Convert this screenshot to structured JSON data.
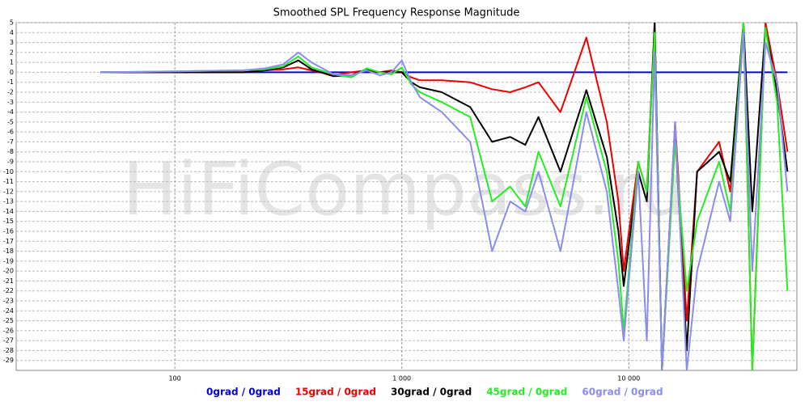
{
  "chart_data": {
    "type": "line",
    "title": "Smoothed SPL Frequency Response Magnitude",
    "watermark": "HiFiCompass.ru",
    "log_x": true,
    "grid": true,
    "xlim": [
      20,
      55000
    ],
    "xticks": [
      100,
      {
        "value": 1000,
        "label": "1 000"
      },
      {
        "value": 10000,
        "label": "10 000"
      }
    ],
    "ylim": [
      -30,
      5
    ],
    "yticks": [
      5,
      4,
      3,
      2,
      1,
      0,
      -1,
      -2,
      -3,
      -4,
      -5,
      -6,
      -7,
      -8,
      -9,
      -10,
      -11,
      -12,
      -13,
      -14,
      -15,
      -16,
      -17,
      -18,
      -19,
      -20,
      -21,
      -22,
      -23,
      -24,
      -25,
      -26,
      -27,
      -28,
      -29
    ],
    "x": [
      47,
      100,
      200,
      250,
      300,
      350,
      400,
      500,
      600,
      700,
      800,
      900,
      1000,
      1100,
      1200,
      1500,
      2000,
      2500,
      3000,
      3500,
      4000,
      5000,
      6500,
      8000,
      9000,
      9500,
      11000,
      12000,
      13000,
      14000,
      16000,
      18000,
      20000,
      25000,
      28000,
      32000,
      35000,
      40000,
      45000,
      50000
    ],
    "series": [
      {
        "name": "0grad / 0grad",
        "color": "#0000dd",
        "values": [
          0,
          0,
          0,
          0,
          0,
          0,
          0,
          0,
          0,
          0,
          0,
          0,
          0,
          0,
          0,
          0,
          0,
          0,
          0,
          0,
          0,
          0,
          0,
          0,
          0,
          0,
          0,
          0,
          0,
          0,
          0,
          0,
          0,
          0,
          0,
          0,
          0,
          0,
          0,
          0
        ]
      },
      {
        "name": "15grad / 0grad",
        "color": "#ee0000",
        "values": [
          0,
          0,
          0,
          0.2,
          0.3,
          0.5,
          0.2,
          -0.3,
          0,
          0.2,
          0,
          0.2,
          0,
          -0.5,
          -0.8,
          -0.8,
          -1,
          -1.7,
          -2,
          -1.5,
          -1,
          -4,
          3.5,
          -5,
          -13,
          -20,
          -9,
          -12,
          5,
          -30,
          -5,
          -25,
          -10,
          -7,
          -12,
          5,
          -30,
          5,
          -1,
          -8
        ]
      },
      {
        "name": "30grad / 0grad",
        "color": "#000000",
        "values": [
          0,
          0,
          0,
          0.2,
          0.5,
          1.2,
          0.3,
          -0.4,
          -0.3,
          0.3,
          0,
          0,
          0,
          -1,
          -1.5,
          -2,
          -3.5,
          -7,
          -6.5,
          -7.3,
          -4.5,
          -10,
          -1.8,
          -8.5,
          -16,
          -21.5,
          -10,
          -13,
          5,
          -30,
          -6,
          -28,
          -10,
          -8,
          -11,
          5,
          -14,
          4.5,
          -2,
          -10
        ]
      },
      {
        "name": "45grad / 0grad",
        "color": "#22ee22",
        "values": [
          0,
          0.1,
          0.2,
          0.3,
          0.6,
          1.6,
          0.5,
          -0.2,
          -0.5,
          0.4,
          0,
          -0.2,
          0.5,
          -1.2,
          -2,
          -3,
          -4.5,
          -13,
          -11.5,
          -13.5,
          -8,
          -13.5,
          -2.5,
          -10,
          -19,
          -26,
          -9,
          -12,
          4,
          -30,
          -7,
          -22,
          -15,
          -9,
          -14,
          5,
          -30,
          4.5,
          -3,
          -22
        ]
      },
      {
        "name": "60grad / 0grad",
        "color": "#8c8cf0",
        "values": [
          0,
          0.1,
          0.2,
          0.4,
          0.8,
          2,
          1,
          -0.2,
          -0.3,
          0.2,
          -0.3,
          0,
          1.2,
          -1,
          -2.5,
          -4,
          -7,
          -18,
          -13,
          -14,
          -10,
          -18,
          -4,
          -12,
          -22,
          -27,
          -10,
          -27,
          2,
          -30,
          -5,
          -30,
          -20,
          -11,
          -15,
          4,
          -20,
          3,
          -1,
          -12
        ]
      }
    ]
  }
}
